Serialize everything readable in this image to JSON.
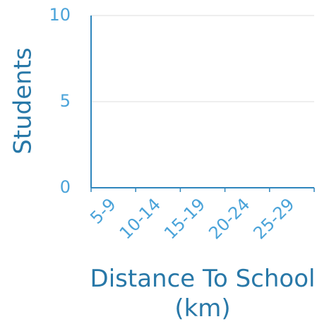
{
  "chart_data": {
    "type": "bar",
    "xlabel": "Distance To School (km)",
    "ylabel": "Students",
    "categories": [
      "5-9",
      "10-14",
      "15-19",
      "20-24",
      "25-29"
    ],
    "values": [
      0,
      0,
      0,
      0,
      0
    ],
    "color": "#4aa3d9",
    "ylim": [
      0,
      10
    ],
    "yticks": [
      0,
      5,
      10
    ],
    "grid": true
  }
}
